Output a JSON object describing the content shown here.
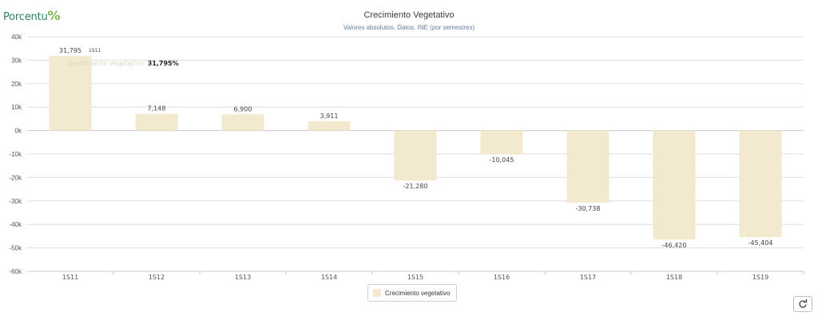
{
  "brand": {
    "logo_text": "Porcentu",
    "logo_mark": "%"
  },
  "chart_data": {
    "type": "bar",
    "title": "Crecimiento Vegetativo",
    "subtitle": "Valores absolutos. Datos. INE (por semestres)",
    "categories": [
      "1S11",
      "1S12",
      "1S13",
      "1S14",
      "1S15",
      "1S16",
      "1S17",
      "1S18",
      "1S19"
    ],
    "series": [
      {
        "name": "Crecimiento vegetativo",
        "values": [
          31795,
          7148,
          6900,
          3911,
          -21280,
          -10045,
          -30738,
          -46420,
          -45404
        ],
        "labels": [
          "31,795",
          "7,148",
          "6,900",
          "3,911",
          "-21,280",
          "-10,045",
          "-30,738",
          "-46,420",
          "-45,404"
        ],
        "color": "#f2e9cf"
      }
    ],
    "ylim": [
      -60000,
      40000
    ],
    "yticks": [
      40000,
      30000,
      20000,
      10000,
      0,
      -10000,
      -20000,
      -30000,
      -40000,
      -50000,
      -60000
    ],
    "ytick_labels": [
      "40k",
      "30k",
      "20k",
      "10k",
      "0k",
      "-10k",
      "-20k",
      "-30k",
      "-40k",
      "-50k",
      "-60k"
    ],
    "grid": true,
    "legend_position": "bottom-center",
    "tooltip": {
      "category": "1S11",
      "series": "Crecimiento vegetativo",
      "value": "31,795%"
    }
  },
  "controls": {
    "refresh_icon": "refresh-icon"
  }
}
